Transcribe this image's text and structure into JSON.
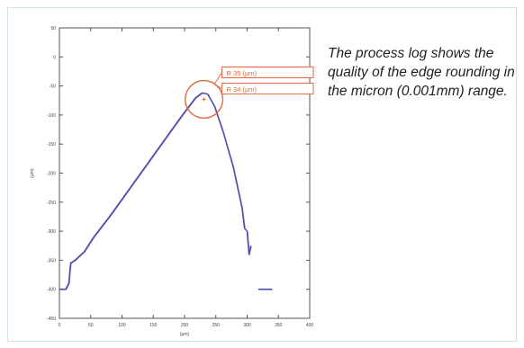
{
  "caption": "The process log shows the quality of the edge rounding in the micron (0.001mm) range.",
  "chart_data": {
    "type": "line",
    "xlabel": "(μm)",
    "ylabel": "(μm)",
    "xlim": [
      0,
      400
    ],
    "ylim": [
      -450,
      50
    ],
    "x_ticks": [
      "0",
      "50",
      "100",
      "150",
      "200",
      "250",
      "300",
      "350",
      "400"
    ],
    "y_ticks": [
      "50",
      "0",
      "-50",
      "-100",
      "-150",
      "-200",
      "-250",
      "-300",
      "-350",
      "-400",
      "-450"
    ],
    "grid": false,
    "series": [
      {
        "color": "#4a4aa8",
        "points": [
          [
            0,
            -400
          ],
          [
            10,
            -400
          ],
          [
            15,
            -390
          ],
          [
            18,
            -355
          ],
          [
            25,
            -350
          ],
          [
            40,
            -335
          ],
          [
            55,
            -310
          ],
          [
            80,
            -275
          ],
          [
            110,
            -230
          ],
          [
            140,
            -185
          ],
          [
            170,
            -140
          ],
          [
            200,
            -95
          ],
          [
            218,
            -70
          ],
          [
            228,
            -62
          ],
          [
            237,
            -64
          ],
          [
            248,
            -85
          ],
          [
            262,
            -130
          ],
          [
            278,
            -190
          ],
          [
            292,
            -260
          ],
          [
            296,
            -295
          ],
          [
            300,
            -300
          ],
          [
            303,
            -340
          ],
          [
            306,
            -325
          ]
        ]
      },
      {
        "color": "#4a4aa8",
        "points": [
          [
            318,
            -400
          ],
          [
            340,
            -400
          ]
        ]
      }
    ],
    "annotations": {
      "circle_center": [
        231,
        -73
      ],
      "circle_radius": 30,
      "labels": [
        "R 35   (μm)",
        "R 34   (μm)"
      ],
      "color": "#e2683c"
    }
  }
}
